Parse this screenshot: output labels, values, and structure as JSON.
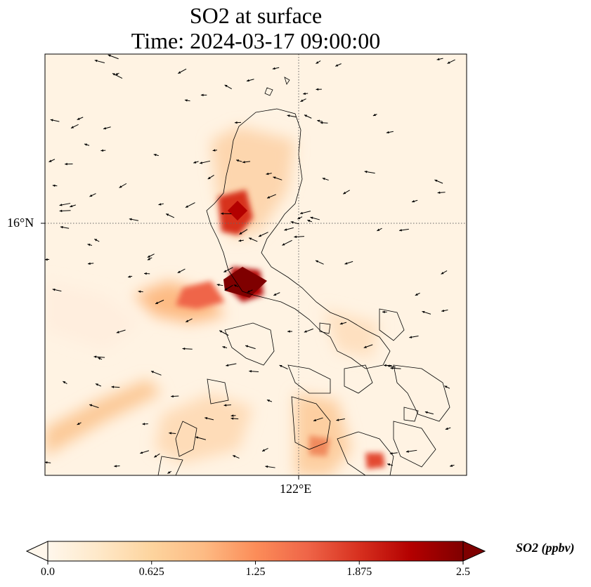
{
  "title": {
    "line1": "SO2 at surface",
    "line2": "Time: 2024-03-17 09:00:00"
  },
  "map": {
    "gridlines": {
      "lat_label": "16°N",
      "lon_label": "122°E",
      "style": "dotted"
    },
    "field_colormap": "OrRd",
    "coastline_color": "#000000",
    "vectors": "wind arrows, mostly from the north-east"
  },
  "colorbar": {
    "min": 0.0,
    "max": 2.5,
    "ticks": [
      "0.0",
      "0.625",
      "1.25",
      "1.875",
      "2.5"
    ],
    "label": "SO2 (ppbv)",
    "extend": "both",
    "colors": [
      "#fff7ec",
      "#fee8c8",
      "#fdd49e",
      "#fdbb84",
      "#fc8d59",
      "#ef6548",
      "#d7301f",
      "#b30000",
      "#7f0000"
    ]
  }
}
